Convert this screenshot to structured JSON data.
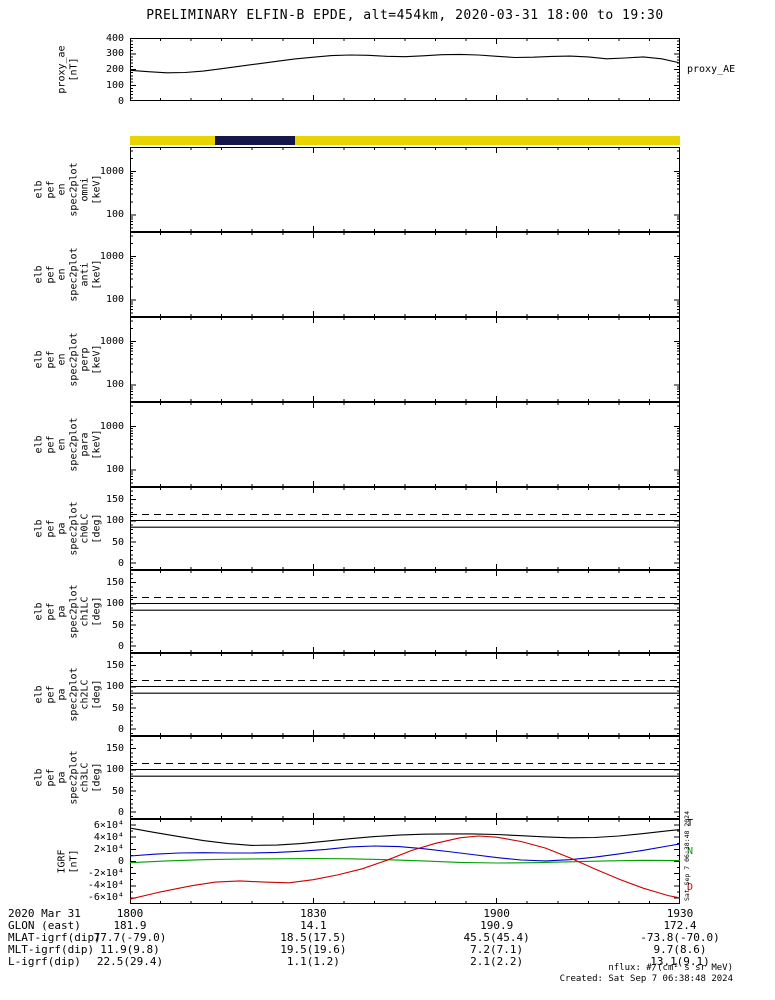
{
  "title": "PRELIMINARY ELFIN-B EPDE, alt=454km, 2020-03-31 18:00 to 19:30",
  "footer": {
    "units_note": "nflux: #/(cm² s sr MeV)",
    "created_note": "Created: Sat Sep 7 06:38:48 2024",
    "side_timestamp": "Sat Sep 7 06:38:48 2024"
  },
  "colors": {
    "coverage_yellow": "#e8d400",
    "coverage_navy": "#16164a",
    "line_black": "#000000",
    "line_blue": "#0000cc",
    "line_green": "#00a000",
    "line_red": "#cc0000"
  },
  "time_axis": {
    "t_min": 0,
    "t_max": 90,
    "major_ticks_min": [
      0,
      30,
      60,
      90
    ],
    "minor_step_min": 5,
    "labels": [
      "1800",
      "1830",
      "1900",
      "1930"
    ]
  },
  "bottom_table": {
    "rows": [
      {
        "label": "2020 Mar 31",
        "values": [
          "1800",
          "1830",
          "1900",
          "1930"
        ]
      },
      {
        "label": "GLON (east)",
        "values": [
          "181.9",
          "14.1",
          "190.9",
          "172.4"
        ]
      },
      {
        "label": "MLAT-igrf(dip)",
        "values": [
          "77.7(-79.0)",
          "18.5(17.5)",
          "45.5(45.4)",
          "-73.8(-70.0)"
        ]
      },
      {
        "label": "MLT-igrf(dip)",
        "values": [
          "11.9(9.8)",
          "19.5(19.6)",
          "7.2(7.1)",
          "9.7(8.6)"
        ]
      },
      {
        "label": "L-igrf(dip)",
        "values": [
          "22.5(29.4)",
          "1.1(1.2)",
          "2.1(2.2)",
          "13.1(9.1)"
        ]
      }
    ]
  },
  "chart_data": [
    {
      "id": "proxy_ae",
      "type": "line",
      "ylabel_lines": [
        "proxy_ae",
        "[nT]"
      ],
      "yrange": [
        0,
        400
      ],
      "yticks": [
        0,
        100,
        200,
        300,
        400
      ],
      "ytick_labels": [
        "0",
        "100",
        "200",
        "300",
        "400"
      ],
      "yminor_step": 20,
      "right_labels": [
        {
          "text": "proxy_AE",
          "v": 200,
          "color": "#000000"
        }
      ],
      "series": [
        {
          "name": "proxy-AE",
          "color": "#000000",
          "x": [
            0,
            3,
            6,
            9,
            12,
            15,
            18,
            21,
            24,
            27,
            30,
            33,
            36,
            39,
            42,
            45,
            48,
            51,
            54,
            57,
            60,
            63,
            66,
            69,
            72,
            75,
            78,
            81,
            84,
            87,
            90
          ],
          "y": [
            195,
            186,
            179,
            181,
            190,
            205,
            221,
            236,
            252,
            267,
            278,
            288,
            292,
            290,
            284,
            281,
            287,
            294,
            296,
            292,
            284,
            276,
            278,
            283,
            285,
            280,
            268,
            273,
            280,
            268,
            242
          ]
        }
      ]
    },
    {
      "id": "coverage_bar",
      "type": "bar-strip",
      "segments": [
        {
          "t_start": 0,
          "t_end": 90,
          "color": "#e8d400"
        },
        {
          "t_start": 13.9,
          "t_end": 27,
          "color": "#16164a"
        }
      ]
    },
    {
      "id": "en_omni",
      "type": "spectrogram-empty",
      "ylabel_lines": [
        "elb",
        "pef",
        "en",
        "spec2plot",
        "omni",
        "[keV]"
      ],
      "yscale": "log",
      "yrange": [
        40,
        3700
      ],
      "yticks": [
        100,
        1000
      ],
      "ytick_labels": [
        "100",
        "1000"
      ],
      "series": []
    },
    {
      "id": "en_anti",
      "type": "spectrogram-empty",
      "ylabel_lines": [
        "elb",
        "pef",
        "en",
        "spec2plot",
        "anti",
        "[keV]"
      ],
      "yscale": "log",
      "yrange": [
        40,
        3700
      ],
      "yticks": [
        100,
        1000
      ],
      "ytick_labels": [
        "100",
        "1000"
      ],
      "series": []
    },
    {
      "id": "en_perp",
      "type": "spectrogram-empty",
      "ylabel_lines": [
        "elb",
        "pef",
        "en",
        "spec2plot",
        "perp",
        "[keV]"
      ],
      "yscale": "log",
      "yrange": [
        40,
        3700
      ],
      "yticks": [
        100,
        1000
      ],
      "ytick_labels": [
        "100",
        "1000"
      ],
      "series": []
    },
    {
      "id": "en_para",
      "type": "spectrogram-empty",
      "ylabel_lines": [
        "elb",
        "pef",
        "en",
        "spec2plot",
        "para",
        "[keV]"
      ],
      "yscale": "log",
      "yrange": [
        40,
        3700
      ],
      "yticks": [
        100,
        1000
      ],
      "ytick_labels": [
        "100",
        "1000"
      ],
      "series": []
    },
    {
      "id": "pa_ch0",
      "type": "line",
      "ylabel_lines": [
        "elb",
        "pef",
        "pa",
        "spec2plot",
        "ch0LC",
        "[deg]"
      ],
      "yrange": [
        -16,
        180
      ],
      "yticks": [
        0,
        50,
        100,
        150
      ],
      "ytick_labels": [
        "0",
        "50",
        "100",
        "150"
      ],
      "yminor_step": 10,
      "series": [
        {
          "name": "antiloss-cone-dashed",
          "color": "#000000",
          "dash": "7,5",
          "x": [
            0,
            90
          ],
          "y": [
            115,
            115
          ]
        },
        {
          "name": "loss-cone-upper",
          "color": "#000000",
          "x": [
            0,
            90
          ],
          "y": [
            101,
            101
          ]
        },
        {
          "name": "loss-cone-lower",
          "color": "#000000",
          "x": [
            0,
            90
          ],
          "y": [
            85,
            85
          ]
        }
      ]
    },
    {
      "id": "pa_ch1",
      "type": "line",
      "ylabel_lines": [
        "elb",
        "pef",
        "pa",
        "spec2plot",
        "ch1LC",
        "[deg]"
      ],
      "yrange": [
        -16,
        180
      ],
      "yticks": [
        0,
        50,
        100,
        150
      ],
      "ytick_labels": [
        "0",
        "50",
        "100",
        "150"
      ],
      "yminor_step": 10,
      "series": [
        {
          "name": "antiloss-cone-dashed",
          "color": "#000000",
          "dash": "7,5",
          "x": [
            0,
            90
          ],
          "y": [
            115,
            115
          ]
        },
        {
          "name": "loss-cone-upper",
          "color": "#000000",
          "x": [
            0,
            90
          ],
          "y": [
            101,
            101
          ]
        },
        {
          "name": "loss-cone-lower",
          "color": "#000000",
          "x": [
            0,
            90
          ],
          "y": [
            85,
            85
          ]
        }
      ]
    },
    {
      "id": "pa_ch2",
      "type": "line",
      "ylabel_lines": [
        "elb",
        "pef",
        "pa",
        "spec2plot",
        "ch2LC",
        "[deg]"
      ],
      "yrange": [
        -16,
        180
      ],
      "yticks": [
        0,
        50,
        100,
        150
      ],
      "ytick_labels": [
        "0",
        "50",
        "100",
        "150"
      ],
      "yminor_step": 10,
      "series": [
        {
          "name": "antiloss-cone-dashed",
          "color": "#000000",
          "dash": "7,5",
          "x": [
            0,
            90
          ],
          "y": [
            115,
            115
          ]
        },
        {
          "name": "loss-cone-upper",
          "color": "#000000",
          "x": [
            0,
            90
          ],
          "y": [
            101,
            101
          ]
        },
        {
          "name": "loss-cone-lower",
          "color": "#000000",
          "x": [
            0,
            90
          ],
          "y": [
            85,
            85
          ]
        }
      ]
    },
    {
      "id": "pa_ch3",
      "type": "line",
      "ylabel_lines": [
        "elb",
        "pef",
        "pa",
        "spec2plot",
        "ch3LC",
        "[deg]"
      ],
      "yrange": [
        -16,
        180
      ],
      "yticks": [
        0,
        50,
        100,
        150
      ],
      "ytick_labels": [
        "0",
        "50",
        "100",
        "150"
      ],
      "yminor_step": 10,
      "series": [
        {
          "name": "antiloss-cone-dashed",
          "color": "#000000",
          "dash": "7,5",
          "x": [
            0,
            90
          ],
          "y": [
            115,
            115
          ]
        },
        {
          "name": "loss-cone-upper",
          "color": "#000000",
          "x": [
            0,
            90
          ],
          "y": [
            101,
            101
          ]
        },
        {
          "name": "loss-cone-lower",
          "color": "#000000",
          "x": [
            0,
            90
          ],
          "y": [
            85,
            85
          ]
        }
      ]
    },
    {
      "id": "igrf",
      "type": "line",
      "ylabel_lines": [
        "IGRF",
        "[nT]"
      ],
      "yrange": [
        -70000,
        70000
      ],
      "yticks": [
        -60000,
        -40000,
        -20000,
        0,
        20000,
        40000,
        60000
      ],
      "ytick_labels": [
        "-6×10⁴",
        "-4×10⁴",
        "-2×10⁴",
        "0",
        "2×10⁴",
        "4×10⁴",
        "6×10⁴"
      ],
      "yminor_step": 10000,
      "right_labels": [
        {
          "text": "T",
          "v": 62000,
          "color": "#000000"
        },
        {
          "text": "N",
          "v": 16000,
          "color": "#00a000"
        },
        {
          "text": "D",
          "v": -42000,
          "color": "#cc0000"
        }
      ],
      "series": [
        {
          "name": "igrf-T",
          "color": "#000000",
          "x": [
            0,
            4,
            8,
            12,
            16,
            20,
            24,
            28,
            32,
            36,
            40,
            44,
            48,
            52,
            56,
            60,
            64,
            68,
            72,
            76,
            80,
            84,
            88,
            90
          ],
          "y": [
            55000,
            48000,
            41000,
            34500,
            29500,
            26500,
            27000,
            29500,
            33500,
            37500,
            41000,
            43500,
            45000,
            45500,
            45500,
            44500,
            42500,
            40500,
            39000,
            39500,
            42000,
            46000,
            50500,
            52500
          ]
        },
        {
          "name": "igrf-blue",
          "color": "#0000cc",
          "x": [
            0,
            4,
            8,
            12,
            16,
            20,
            24,
            28,
            32,
            36,
            40,
            44,
            48,
            52,
            56,
            60,
            64,
            68,
            72,
            76,
            80,
            84,
            88,
            90
          ],
          "y": [
            9000,
            12000,
            14000,
            14500,
            14000,
            14000,
            15000,
            17000,
            20000,
            24000,
            25500,
            24500,
            21000,
            16500,
            11500,
            6500,
            2500,
            1000,
            3000,
            7000,
            12500,
            18500,
            25500,
            29000
          ]
        },
        {
          "name": "igrf-N",
          "color": "#00a000",
          "x": [
            0,
            6,
            12,
            18,
            24,
            30,
            36,
            42,
            48,
            54,
            60,
            66,
            72,
            78,
            84,
            90
          ],
          "y": [
            -2000,
            1000,
            3000,
            4000,
            4500,
            5000,
            4500,
            3000,
            1000,
            -1500,
            -2500,
            -2000,
            -500,
            1000,
            2000,
            1500
          ]
        },
        {
          "name": "igrf-D",
          "color": "#cc0000",
          "x": [
            0,
            5,
            10,
            14,
            18,
            22,
            26,
            30,
            34,
            38,
            42,
            46,
            50,
            54,
            57,
            60,
            64,
            68,
            72,
            76,
            80,
            84,
            88,
            90
          ],
          "y": [
            -62000,
            -50000,
            -40000,
            -34000,
            -32000,
            -34000,
            -35000,
            -30000,
            -22000,
            -12000,
            2000,
            18000,
            30000,
            39000,
            42000,
            40000,
            33000,
            22000,
            6000,
            -12000,
            -29000,
            -44000,
            -56000,
            -60000
          ]
        }
      ]
    }
  ]
}
